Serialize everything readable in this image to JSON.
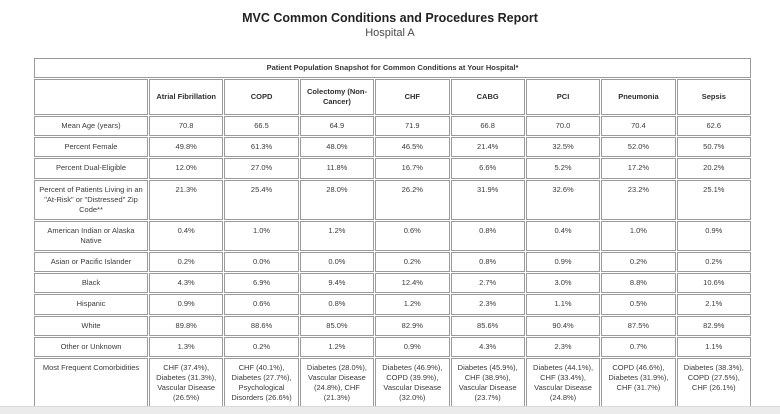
{
  "report": {
    "title": "MVC Common Conditions and Procedures Report",
    "subtitle": "Hospital A"
  },
  "table": {
    "banner": "Patient Population Snapshot for Common Conditions at Your Hospital*",
    "columns": [
      "Atrial Fibrillation",
      "COPD",
      "Colectomy (Non-Cancer)",
      "CHF",
      "CABG",
      "PCI",
      "Pneumonia",
      "Sepsis"
    ],
    "rows": [
      {
        "label": "Mean Age (years)",
        "values": [
          "70.8",
          "66.5",
          "64.9",
          "71.9",
          "66.8",
          "70.0",
          "70.4",
          "62.6"
        ]
      },
      {
        "label": "Percent Female",
        "values": [
          "49.8%",
          "61.3%",
          "48.0%",
          "46.5%",
          "21.4%",
          "32.5%",
          "52.0%",
          "50.7%"
        ]
      },
      {
        "label": "Percent Dual-Eligible",
        "values": [
          "12.0%",
          "27.0%",
          "11.8%",
          "16.7%",
          "6.6%",
          "5.2%",
          "17.2%",
          "20.2%"
        ]
      },
      {
        "label": "Percent of Patients Living in an \"At-Risk\" or \"Distressed\" Zip Code**",
        "values": [
          "21.3%",
          "25.4%",
          "28.0%",
          "26.2%",
          "31.9%",
          "32.6%",
          "23.2%",
          "25.1%"
        ]
      },
      {
        "label": "American Indian or Alaska Native",
        "values": [
          "0.4%",
          "1.0%",
          "1.2%",
          "0.6%",
          "0.8%",
          "0.4%",
          "1.0%",
          "0.9%"
        ]
      },
      {
        "label": "Asian or Pacific Islander",
        "values": [
          "0.2%",
          "0.0%",
          "0.0%",
          "0.2%",
          "0.8%",
          "0.9%",
          "0.2%",
          "0.2%"
        ]
      },
      {
        "label": "Black",
        "values": [
          "4.3%",
          "6.9%",
          "9.4%",
          "12.4%",
          "2.7%",
          "3.0%",
          "8.8%",
          "10.6%"
        ]
      },
      {
        "label": "Hispanic",
        "values": [
          "0.9%",
          "0.6%",
          "0.8%",
          "1.2%",
          "2.3%",
          "1.1%",
          "0.5%",
          "2.1%"
        ]
      },
      {
        "label": "White",
        "values": [
          "89.8%",
          "88.6%",
          "85.0%",
          "82.9%",
          "85.6%",
          "90.4%",
          "87.5%",
          "82.9%"
        ]
      },
      {
        "label": "Other or Unknown",
        "values": [
          "1.3%",
          "0.2%",
          "1.2%",
          "0.9%",
          "4.3%",
          "2.3%",
          "0.7%",
          "1.1%"
        ]
      },
      {
        "label": "Most Frequent Comorbidities",
        "values": [
          "CHF (37.4%), Diabetes (31.3%), Vascular Disease (26.5%)",
          "CHF (40.1%), Diabetes (27.7%), Psychological Disorders (26.6%)",
          "Diabetes (28.0%), Vascular Disease (24.8%), CHF (21.3%)",
          "Diabetes (46.9%), COPD (39.9%), Vascular Disease (32.0%)",
          "Diabetes (45.9%), CHF (38.9%), Vascular Disease (23.7%)",
          "Diabetes (44.1%), CHF (33.4%), Vascular Disease (24.8%)",
          "COPD (46.6%), Diabetes (31.9%), CHF (31.7%)",
          "Diabetes (38.3%), COPD (27.5%), CHF (26.1%)"
        ]
      }
    ]
  },
  "colors": {
    "border": "#9b9b9b",
    "text": "#3a3a3a",
    "title": "#222222"
  }
}
